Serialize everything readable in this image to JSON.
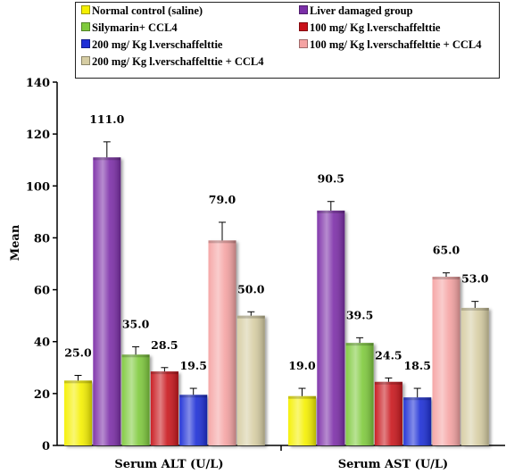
{
  "chart_data": {
    "type": "bar",
    "categories": [
      "Serum ALT (U/L)",
      "Serum AST (U/L)"
    ],
    "ylabel": "Mean",
    "ylim": [
      0,
      140
    ],
    "yticks": [
      "0",
      "20",
      "40",
      "60",
      "80",
      "100",
      "120",
      "140"
    ],
    "grid": false,
    "legend_position": "top",
    "series": [
      {
        "name": "Normal control (saline)",
        "color": "#f5f000",
        "values": [
          25.0,
          19.0
        ],
        "errors": [
          2.0,
          3.0
        ],
        "labels": [
          "25.0",
          "19.0"
        ]
      },
      {
        "name": "Liver damaged group",
        "color": "#7b2fa8",
        "values": [
          111.0,
          90.5
        ],
        "errors": [
          6.0,
          3.5
        ],
        "labels": [
          "111.0",
          "90.5"
        ]
      },
      {
        "name": "Silymarin+ CCL4",
        "color": "#7fca3c",
        "values": [
          35.0,
          39.5
        ],
        "errors": [
          3.0,
          2.0
        ],
        "labels": [
          "35.0",
          "39.5"
        ]
      },
      {
        "name": "100 mg/ Kg l.verschaffelttie",
        "color": "#c9121a",
        "values": [
          28.5,
          24.5
        ],
        "errors": [
          1.5,
          1.5
        ],
        "labels": [
          "28.5",
          "24.5"
        ]
      },
      {
        "name": "200 mg/ Kg l.verschaffelttie",
        "color": "#1f2fd6",
        "values": [
          19.5,
          18.5
        ],
        "errors": [
          2.5,
          3.5
        ],
        "labels": [
          "19.5",
          "18.5"
        ]
      },
      {
        "name": "100 mg/ Kg l.verschaffelttie + CCL4",
        "color": "#f5a3a3",
        "values": [
          79.0,
          65.0
        ],
        "errors": [
          7.0,
          1.5
        ],
        "labels": [
          "79.0",
          "65.0"
        ]
      },
      {
        "name": "200 mg/ Kg l.verschaffelttie + CCL4",
        "color": "#d6cda3",
        "values": [
          50.0,
          53.0
        ],
        "errors": [
          1.5,
          2.5
        ],
        "labels": [
          "50.0",
          "53.0"
        ]
      }
    ]
  }
}
